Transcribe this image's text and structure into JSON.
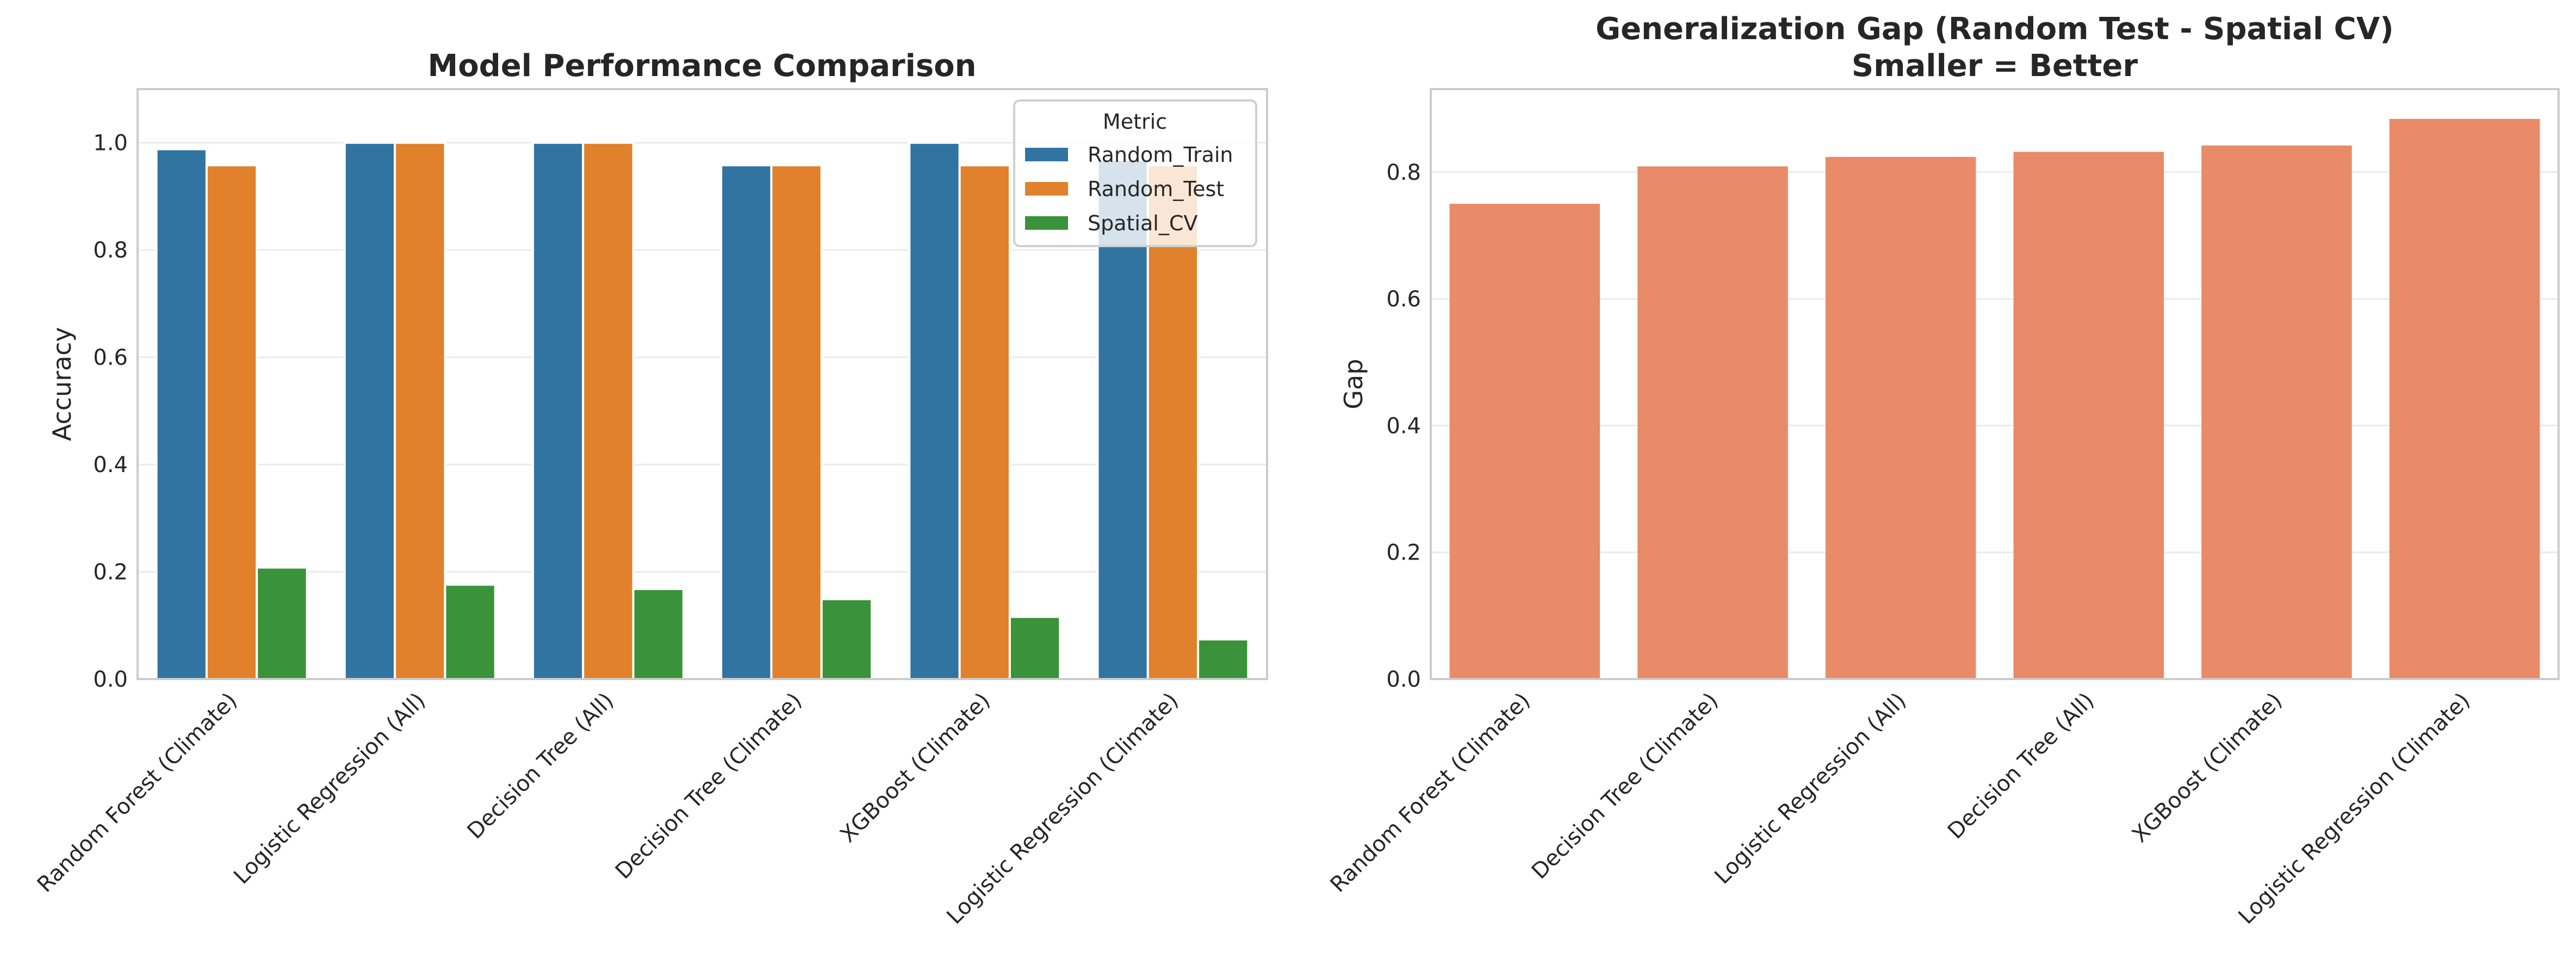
{
  "chart_data": [
    {
      "type": "bar",
      "title": "Model Performance Comparison",
      "xlabel": "",
      "ylabel": "Accuracy",
      "ylim": [
        0,
        1.1
      ],
      "yticks": [
        "0.0",
        "0.2",
        "0.4",
        "0.6",
        "0.8",
        "1.0"
      ],
      "grid": true,
      "categories": [
        "Random Forest (Climate)",
        "Logistic Regression (All)",
        "Decision Tree (All)",
        "Decision Tree (Climate)",
        "XGBoost (Climate)",
        "Logistic Regression (Climate)"
      ],
      "legend": {
        "title": "Metric",
        "placement": "top-right"
      },
      "series": [
        {
          "name": "Random_Train",
          "color": "#3274a1",
          "values": [
            0.988,
            1.0,
            1.0,
            0.958,
            1.0,
            0.968
          ]
        },
        {
          "name": "Random_Test",
          "color": "#e1812c",
          "values": [
            0.958,
            1.0,
            1.0,
            0.958,
            0.958,
            0.958
          ]
        },
        {
          "name": "Spatial_CV",
          "color": "#3a923a",
          "values": [
            0.208,
            0.176,
            0.168,
            0.149,
            0.116,
            0.074
          ]
        }
      ]
    },
    {
      "type": "bar",
      "title": "Generalization Gap (Random Test - Spatial CV)\nSmaller = Better",
      "title_lines": [
        "Generalization Gap (Random Test - Spatial CV)",
        "Smaller = Better"
      ],
      "xlabel": "",
      "ylabel": "Gap",
      "ylim": [
        0,
        0.931
      ],
      "yticks": [
        "0.0",
        "0.2",
        "0.4",
        "0.6",
        "0.8"
      ],
      "grid": true,
      "reference_line": {
        "y": 0,
        "style": "dashed",
        "color": "#999999"
      },
      "categories": [
        "Random Forest (Climate)",
        "Decision Tree (Climate)",
        "Logistic Regression (All)",
        "Decision Tree (All)",
        "XGBoost (Climate)",
        "Logistic Regression (Climate)"
      ],
      "color": "#e98a68",
      "values": [
        0.75,
        0.809,
        0.824,
        0.832,
        0.842,
        0.884
      ]
    }
  ]
}
